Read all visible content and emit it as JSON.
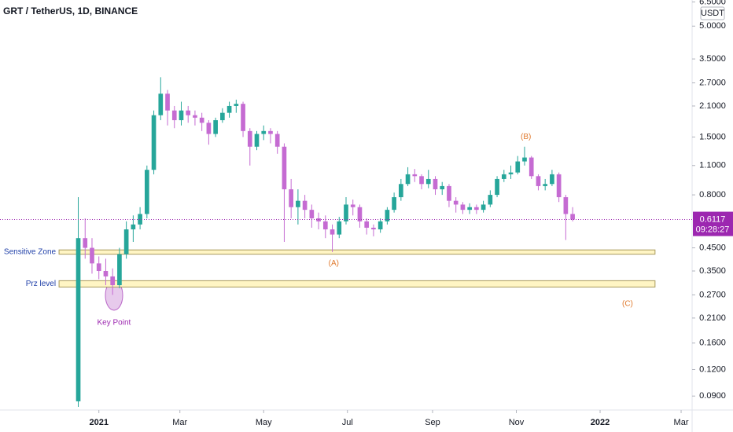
{
  "chart_data": {
    "type": "candlestick",
    "title": "GRT / TetherUS, 1D, BINANCE",
    "currency": "USDT",
    "log_scale": true,
    "up_color": "#26a69a",
    "down_color": "#c56bd2",
    "x": [
      -15,
      -10,
      -5,
      0,
      5,
      10,
      15,
      20,
      25,
      30,
      35,
      40,
      45,
      50,
      55,
      60,
      65,
      70,
      75,
      80,
      85,
      90,
      95,
      100,
      105,
      110,
      115,
      120,
      125,
      130,
      135,
      140,
      145,
      150,
      155,
      160,
      165,
      170,
      175,
      180,
      185,
      190,
      195,
      200,
      205,
      210,
      215,
      220,
      225,
      230,
      235,
      240,
      245,
      250,
      255,
      260,
      265,
      270,
      275,
      280,
      285,
      290,
      295,
      300,
      305,
      310,
      315,
      320,
      325,
      330,
      335,
      340,
      345
    ],
    "open": [
      0.085,
      0.5,
      0.45,
      0.38,
      0.35,
      0.33,
      0.3,
      0.42,
      0.55,
      0.58,
      0.65,
      1.05,
      1.9,
      2.4,
      2.0,
      1.8,
      2.0,
      1.9,
      1.85,
      1.75,
      1.55,
      1.8,
      1.95,
      2.1,
      2.15,
      1.6,
      1.35,
      1.55,
      1.6,
      1.55,
      1.35,
      0.85,
      0.7,
      0.75,
      0.68,
      0.62,
      0.6,
      0.55,
      0.52,
      0.6,
      0.72,
      0.7,
      0.6,
      0.56,
      0.55,
      0.6,
      0.68,
      0.78,
      0.9,
      1.0,
      0.98,
      0.9,
      0.95,
      0.85,
      0.88,
      0.75,
      0.72,
      0.68,
      0.7,
      0.68,
      0.72,
      0.8,
      0.95,
      1.0,
      1.02,
      1.15,
      1.2,
      0.98,
      0.88,
      0.9,
      1.0,
      0.78,
      0.65
    ],
    "high": [
      0.78,
      0.62,
      0.5,
      0.41,
      0.4,
      0.36,
      0.45,
      0.6,
      0.64,
      0.7,
      1.1,
      2.0,
      2.87,
      2.5,
      2.1,
      2.2,
      2.1,
      2.0,
      1.95,
      1.8,
      1.85,
      2.05,
      2.2,
      2.25,
      2.2,
      1.65,
      1.6,
      1.7,
      1.65,
      1.6,
      1.4,
      0.95,
      0.85,
      0.8,
      0.72,
      0.66,
      0.64,
      0.58,
      0.63,
      0.78,
      0.76,
      0.72,
      0.62,
      0.58,
      0.62,
      0.7,
      0.82,
      0.95,
      1.08,
      1.06,
      1.0,
      1.05,
      0.98,
      0.92,
      0.9,
      0.78,
      0.74,
      0.73,
      0.72,
      0.75,
      0.84,
      0.98,
      1.05,
      1.1,
      1.22,
      1.35,
      1.22,
      1.0,
      0.95,
      1.05,
      1.02,
      0.8,
      0.7
    ],
    "low": [
      0.08,
      0.4,
      0.34,
      0.32,
      0.3,
      0.27,
      0.29,
      0.4,
      0.48,
      0.55,
      0.62,
      1.0,
      1.8,
      1.7,
      1.65,
      1.7,
      1.75,
      1.7,
      1.6,
      1.38,
      1.5,
      1.75,
      1.85,
      1.95,
      1.5,
      1.1,
      1.3,
      1.45,
      1.4,
      1.25,
      0.48,
      0.62,
      0.58,
      0.62,
      0.56,
      0.55,
      0.5,
      0.43,
      0.5,
      0.58,
      0.64,
      0.56,
      0.52,
      0.51,
      0.53,
      0.58,
      0.66,
      0.75,
      0.88,
      0.92,
      0.85,
      0.86,
      0.8,
      0.8,
      0.7,
      0.66,
      0.65,
      0.65,
      0.65,
      0.66,
      0.7,
      0.78,
      0.92,
      0.95,
      1.0,
      1.1,
      0.95,
      0.84,
      0.84,
      0.88,
      0.74,
      0.49,
      0.6
    ],
    "close": [
      0.5,
      0.45,
      0.38,
      0.35,
      0.33,
      0.3,
      0.42,
      0.55,
      0.58,
      0.65,
      1.05,
      1.9,
      2.4,
      2.0,
      1.8,
      2.0,
      1.9,
      1.85,
      1.75,
      1.55,
      1.8,
      1.95,
      2.1,
      2.15,
      1.6,
      1.35,
      1.55,
      1.6,
      1.55,
      1.35,
      0.85,
      0.7,
      0.75,
      0.68,
      0.62,
      0.6,
      0.55,
      0.52,
      0.6,
      0.72,
      0.7,
      0.6,
      0.56,
      0.55,
      0.6,
      0.68,
      0.78,
      0.9,
      1.0,
      0.98,
      0.9,
      0.95,
      0.85,
      0.88,
      0.75,
      0.72,
      0.68,
      0.7,
      0.68,
      0.72,
      0.8,
      0.95,
      1.0,
      1.02,
      1.15,
      1.2,
      0.98,
      0.88,
      0.9,
      1.0,
      0.78,
      0.65,
      0.6117
    ],
    "last_price": 0.6117,
    "countdown": "09:28:27",
    "xlim": [
      -72,
      432
    ],
    "xticks": [
      {
        "value": 0,
        "label": "2021"
      },
      {
        "value": 59,
        "label": "Mar"
      },
      {
        "value": 120,
        "label": "May"
      },
      {
        "value": 181,
        "label": "Jul"
      },
      {
        "value": 243,
        "label": "Sep"
      },
      {
        "value": 304,
        "label": "Nov"
      },
      {
        "value": 365,
        "label": "2022"
      },
      {
        "value": 424,
        "label": "Mar"
      }
    ],
    "ylim": [
      0.078,
      6.64
    ],
    "yticks": [
      {
        "value": 0.09,
        "label": "0.0900"
      },
      {
        "value": 0.12,
        "label": "0.1200"
      },
      {
        "value": 0.16,
        "label": "0.1600"
      },
      {
        "value": 0.21,
        "label": "0.2100"
      },
      {
        "value": 0.27,
        "label": "0.2700"
      },
      {
        "value": 0.35,
        "label": "0.3500"
      },
      {
        "value": 0.45,
        "label": "0.4500"
      },
      {
        "value": 0.8,
        "label": "0.8000"
      },
      {
        "value": 1.1,
        "label": "1.1000"
      },
      {
        "value": 1.5,
        "label": "1.5000"
      },
      {
        "value": 2.1,
        "label": "2.1000"
      },
      {
        "value": 2.7,
        "label": "2.7000"
      },
      {
        "value": 3.5,
        "label": "3.5000"
      },
      {
        "value": 5.0,
        "label": "5.0000"
      },
      {
        "value": 6.5,
        "label": "6.5000"
      }
    ],
    "zones": [
      {
        "label": "Sensitive Zone",
        "range": [
          0.42,
          0.44
        ],
        "x": [
          -29,
          405
        ]
      },
      {
        "label": "Prz level",
        "range": [
          0.294,
          0.315
        ],
        "x": [
          -29,
          405
        ]
      }
    ],
    "annotations": [
      {
        "text": "(A)",
        "x": 171,
        "y": 0.38,
        "color": "#e07a2e"
      },
      {
        "text": "(B)",
        "x": 311,
        "y": 1.5,
        "color": "#e07a2e"
      },
      {
        "text": "(C)",
        "x": 385,
        "y": 0.245,
        "color": "#e07a2e"
      },
      {
        "text": "Key Point",
        "x": 11,
        "y": 0.2,
        "color": "#9c27b0"
      }
    ]
  }
}
